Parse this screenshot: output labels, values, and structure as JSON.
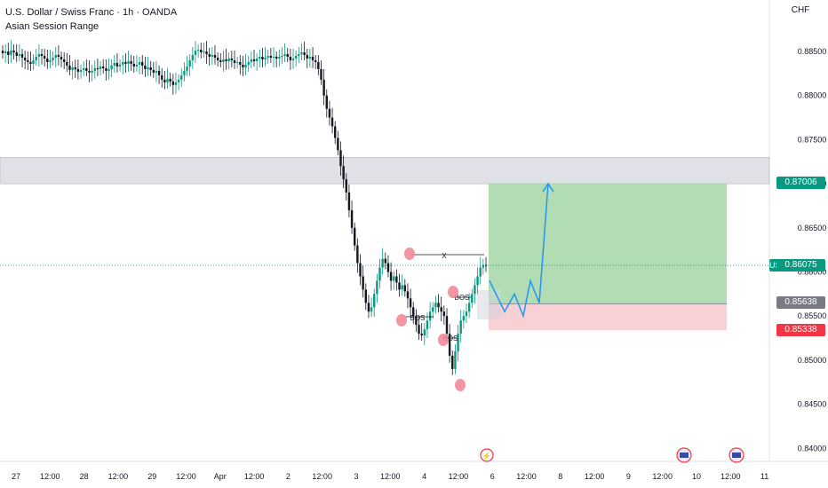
{
  "header": {
    "title": "U.S. Dollar / Swiss Franc · 1h · OANDA",
    "indicator": "Asian Session Range"
  },
  "currency_label": "CHF",
  "price_tags": {
    "symbol": "USDCHF",
    "current": "0.86075",
    "target": "0.87006",
    "entry": "0.85638",
    "stop": "0.85338"
  },
  "annotations": {
    "x": "X",
    "bos1": "BOS",
    "bos2": "BOS",
    "bos3": "BOS"
  },
  "colors": {
    "up": "#089981",
    "down": "#131722",
    "bullish_zone": "#a5d6a7",
    "bearish_zone": "#f8c9cc",
    "resistance_zone": "#d1d4dc",
    "arrow": "#2196f3",
    "marker": "#f28b99",
    "current_price": "#089981",
    "stop_tag": "#f23645",
    "entry_tag": "#787b86"
  },
  "chart_data": {
    "type": "candlestick",
    "y_axis": {
      "ticks": [
        "0.88500",
        "0.88000",
        "0.87500",
        "0.87000",
        "0.86500",
        "0.86000",
        "0.85500",
        "0.85000",
        "0.84500",
        "0.84000"
      ],
      "range": [
        0.8375,
        0.891
      ]
    },
    "x_axis": {
      "ticks": [
        "27",
        "12:00",
        "28",
        "12:00",
        "29",
        "12:00",
        "Apr",
        "12:00",
        "2",
        "12:00",
        "3",
        "12:00",
        "4",
        "12:00",
        "6",
        "12:00",
        "8",
        "12:00",
        "9",
        "12:00",
        "10",
        "12:00",
        "11"
      ]
    },
    "zones": {
      "resistance": [
        0.87,
        0.873
      ],
      "target_zone": [
        0.85638,
        0.87006
      ],
      "stop_zone": [
        0.85338,
        0.85638
      ]
    },
    "close_path": [
      0.8848,
      0.885,
      0.8846,
      0.8851,
      0.8849,
      0.8845,
      0.8847,
      0.8843,
      0.884,
      0.8838,
      0.8836,
      0.884,
      0.8844,
      0.8847,
      0.8845,
      0.8842,
      0.8838,
      0.884,
      0.8843,
      0.8846,
      0.8844,
      0.8841,
      0.8838,
      0.8834,
      0.8829,
      0.8832,
      0.883,
      0.8827,
      0.8829,
      0.8831,
      0.8828,
      0.8826,
      0.8828,
      0.8831,
      0.883,
      0.8833,
      0.8831,
      0.8828,
      0.883,
      0.8834,
      0.8837,
      0.8833,
      0.8835,
      0.8838,
      0.8836,
      0.8839,
      0.8836,
      0.8833,
      0.8835,
      0.8838,
      0.8834,
      0.883,
      0.8832,
      0.8829,
      0.8826,
      0.8828,
      0.8823,
      0.8818,
      0.8815,
      0.8819,
      0.8816,
      0.8812,
      0.8815,
      0.8818,
      0.8823,
      0.8828,
      0.8833,
      0.884,
      0.8846,
      0.8851,
      0.8852,
      0.8849,
      0.885,
      0.8847,
      0.8844,
      0.8846,
      0.8843,
      0.884,
      0.8838,
      0.8841,
      0.8839,
      0.8842,
      0.884,
      0.8837,
      0.8838,
      0.8835,
      0.8832,
      0.8835,
      0.8838,
      0.8841,
      0.8839,
      0.8842,
      0.8844,
      0.8841,
      0.8843,
      0.8845,
      0.8843,
      0.8844,
      0.8842,
      0.8844,
      0.8845,
      0.8847,
      0.8844,
      0.884,
      0.8842,
      0.8845,
      0.8847,
      0.8849,
      0.8846,
      0.8842,
      0.8844,
      0.884,
      0.8838,
      0.883,
      0.8818,
      0.88,
      0.8785,
      0.8775,
      0.8765,
      0.8752,
      0.8738,
      0.872,
      0.8705,
      0.869,
      0.867,
      0.865,
      0.863,
      0.861,
      0.8595,
      0.858,
      0.8565,
      0.8555,
      0.856,
      0.8575,
      0.859,
      0.8605,
      0.8615,
      0.861,
      0.86,
      0.859,
      0.8595,
      0.8588,
      0.858,
      0.8585,
      0.8578,
      0.857,
      0.856,
      0.855,
      0.854,
      0.853,
      0.8528,
      0.8535,
      0.8545,
      0.8555,
      0.856,
      0.8565,
      0.856,
      0.8555,
      0.855,
      0.853,
      0.8505,
      0.849,
      0.851,
      0.853,
      0.8545,
      0.855,
      0.8555,
      0.8565,
      0.8575,
      0.8585,
      0.8595,
      0.8605,
      0.8608,
      0.8607
    ],
    "projection": [
      0.859,
      0.8555,
      0.8575,
      0.855,
      0.859,
      0.8565,
      0.87
    ]
  }
}
